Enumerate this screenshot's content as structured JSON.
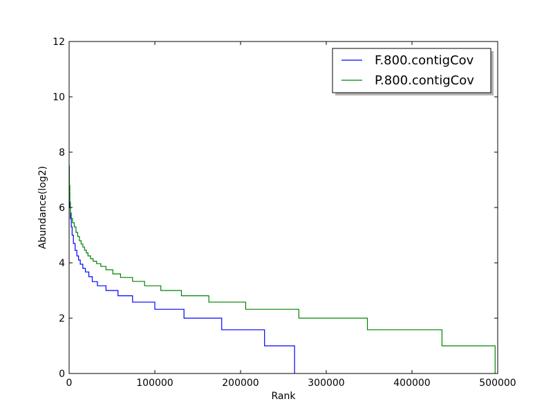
{
  "chart_data": {
    "type": "line",
    "title": "",
    "xlabel": "Rank",
    "ylabel": "Abundance(log2)",
    "xlim": [
      0,
      500000
    ],
    "ylim": [
      0,
      12
    ],
    "xticks": [
      0,
      100000,
      200000,
      300000,
      400000,
      500000
    ],
    "xtick_labels": [
      "0",
      "100000",
      "200000",
      "300000",
      "400000",
      "500000"
    ],
    "yticks": [
      0,
      2,
      4,
      6,
      8,
      10,
      12
    ],
    "ytick_labels": [
      "0",
      "2",
      "4",
      "6",
      "8",
      "10",
      "12"
    ],
    "grid": false,
    "legend": "top-right",
    "step": "post",
    "series": [
      {
        "name": "F.800.contigCov",
        "color": "#0000ff",
        "x": [
          0,
          300,
          800,
          1500,
          2500,
          3500,
          5000,
          7000,
          9000,
          11000,
          13000,
          16000,
          19000,
          23000,
          27000,
          33000,
          43000,
          57000,
          74000,
          100000,
          134000,
          178000,
          228000,
          263000,
          263000
        ],
        "y": [
          7.3,
          6.5,
          6.0,
          5.6,
          5.3,
          5.0,
          4.7,
          4.45,
          4.25,
          4.1,
          3.95,
          3.8,
          3.67,
          3.5,
          3.32,
          3.17,
          3.0,
          2.81,
          2.58,
          2.32,
          2.0,
          1.58,
          1.0,
          1.0,
          0.0
        ]
      },
      {
        "name": "P.800.contigCov",
        "color": "#008000",
        "x": [
          0,
          300,
          800,
          1500,
          2500,
          4000,
          6000,
          8000,
          10000,
          12000,
          14000,
          16000,
          18000,
          20000,
          22000,
          25000,
          28000,
          32000,
          37000,
          43000,
          51000,
          60000,
          74000,
          88000,
          107000,
          131000,
          163000,
          206000,
          268000,
          348000,
          435000,
          497000,
          497000
        ],
        "y": [
          7.5,
          6.8,
          6.2,
          5.8,
          5.6,
          5.45,
          5.3,
          5.1,
          4.95,
          4.8,
          4.68,
          4.57,
          4.46,
          4.36,
          4.25,
          4.15,
          4.06,
          3.97,
          3.87,
          3.75,
          3.6,
          3.47,
          3.33,
          3.17,
          3.0,
          2.81,
          2.58,
          2.32,
          2.0,
          1.58,
          1.0,
          1.0,
          0.0
        ]
      }
    ]
  }
}
